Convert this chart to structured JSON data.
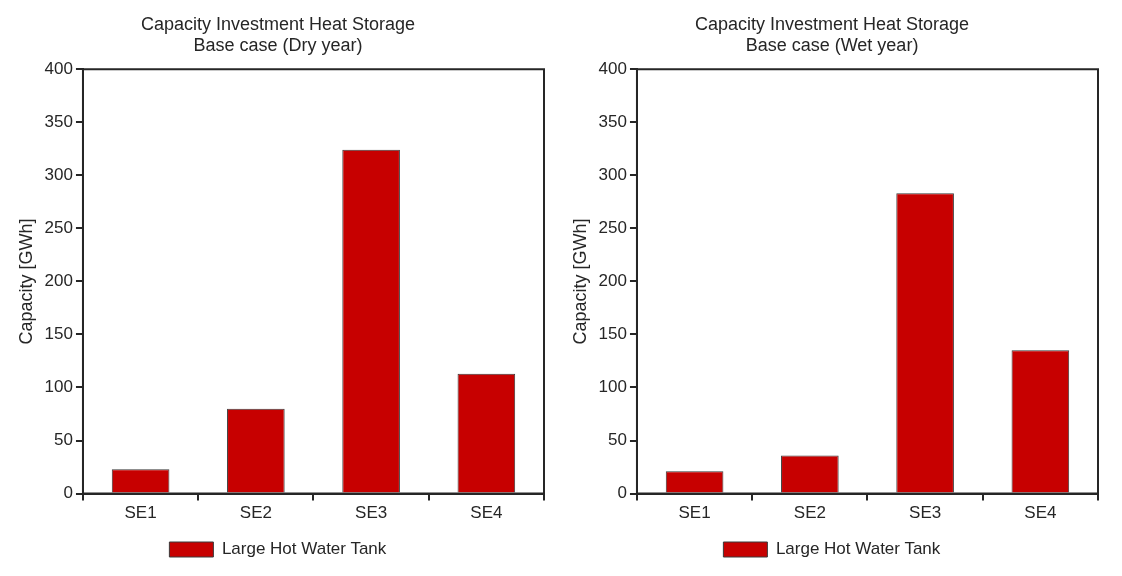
{
  "chart_data": [
    {
      "type": "bar",
      "title": "Capacity Investment Heat Storage\nBase case (Dry year)",
      "ylabel": "Capacity [GWh]",
      "categories": [
        "SE1",
        "SE2",
        "SE3",
        "SE4"
      ],
      "series": [
        {
          "name": "Large Hot Water Tank",
          "color": "#c70000",
          "values": [
            23,
            80,
            324,
            113
          ]
        }
      ],
      "ylim": [
        0,
        400
      ],
      "yticks": [
        0,
        50,
        100,
        150,
        200,
        250,
        300,
        350,
        400
      ],
      "grid": false,
      "legend": "bottom"
    },
    {
      "type": "bar",
      "title": "Capacity Investment Heat Storage\nBase case (Wet year)",
      "ylabel": "Capacity [GWh]",
      "categories": [
        "SE1",
        "SE2",
        "SE3",
        "SE4"
      ],
      "series": [
        {
          "name": "Large Hot Water Tank",
          "color": "#c70000",
          "values": [
            21,
            36,
            283,
            135
          ]
        }
      ],
      "ylim": [
        0,
        400
      ],
      "yticks": [
        0,
        50,
        100,
        150,
        200,
        250,
        300,
        350,
        400
      ],
      "grid": false,
      "legend": "bottom"
    }
  ]
}
